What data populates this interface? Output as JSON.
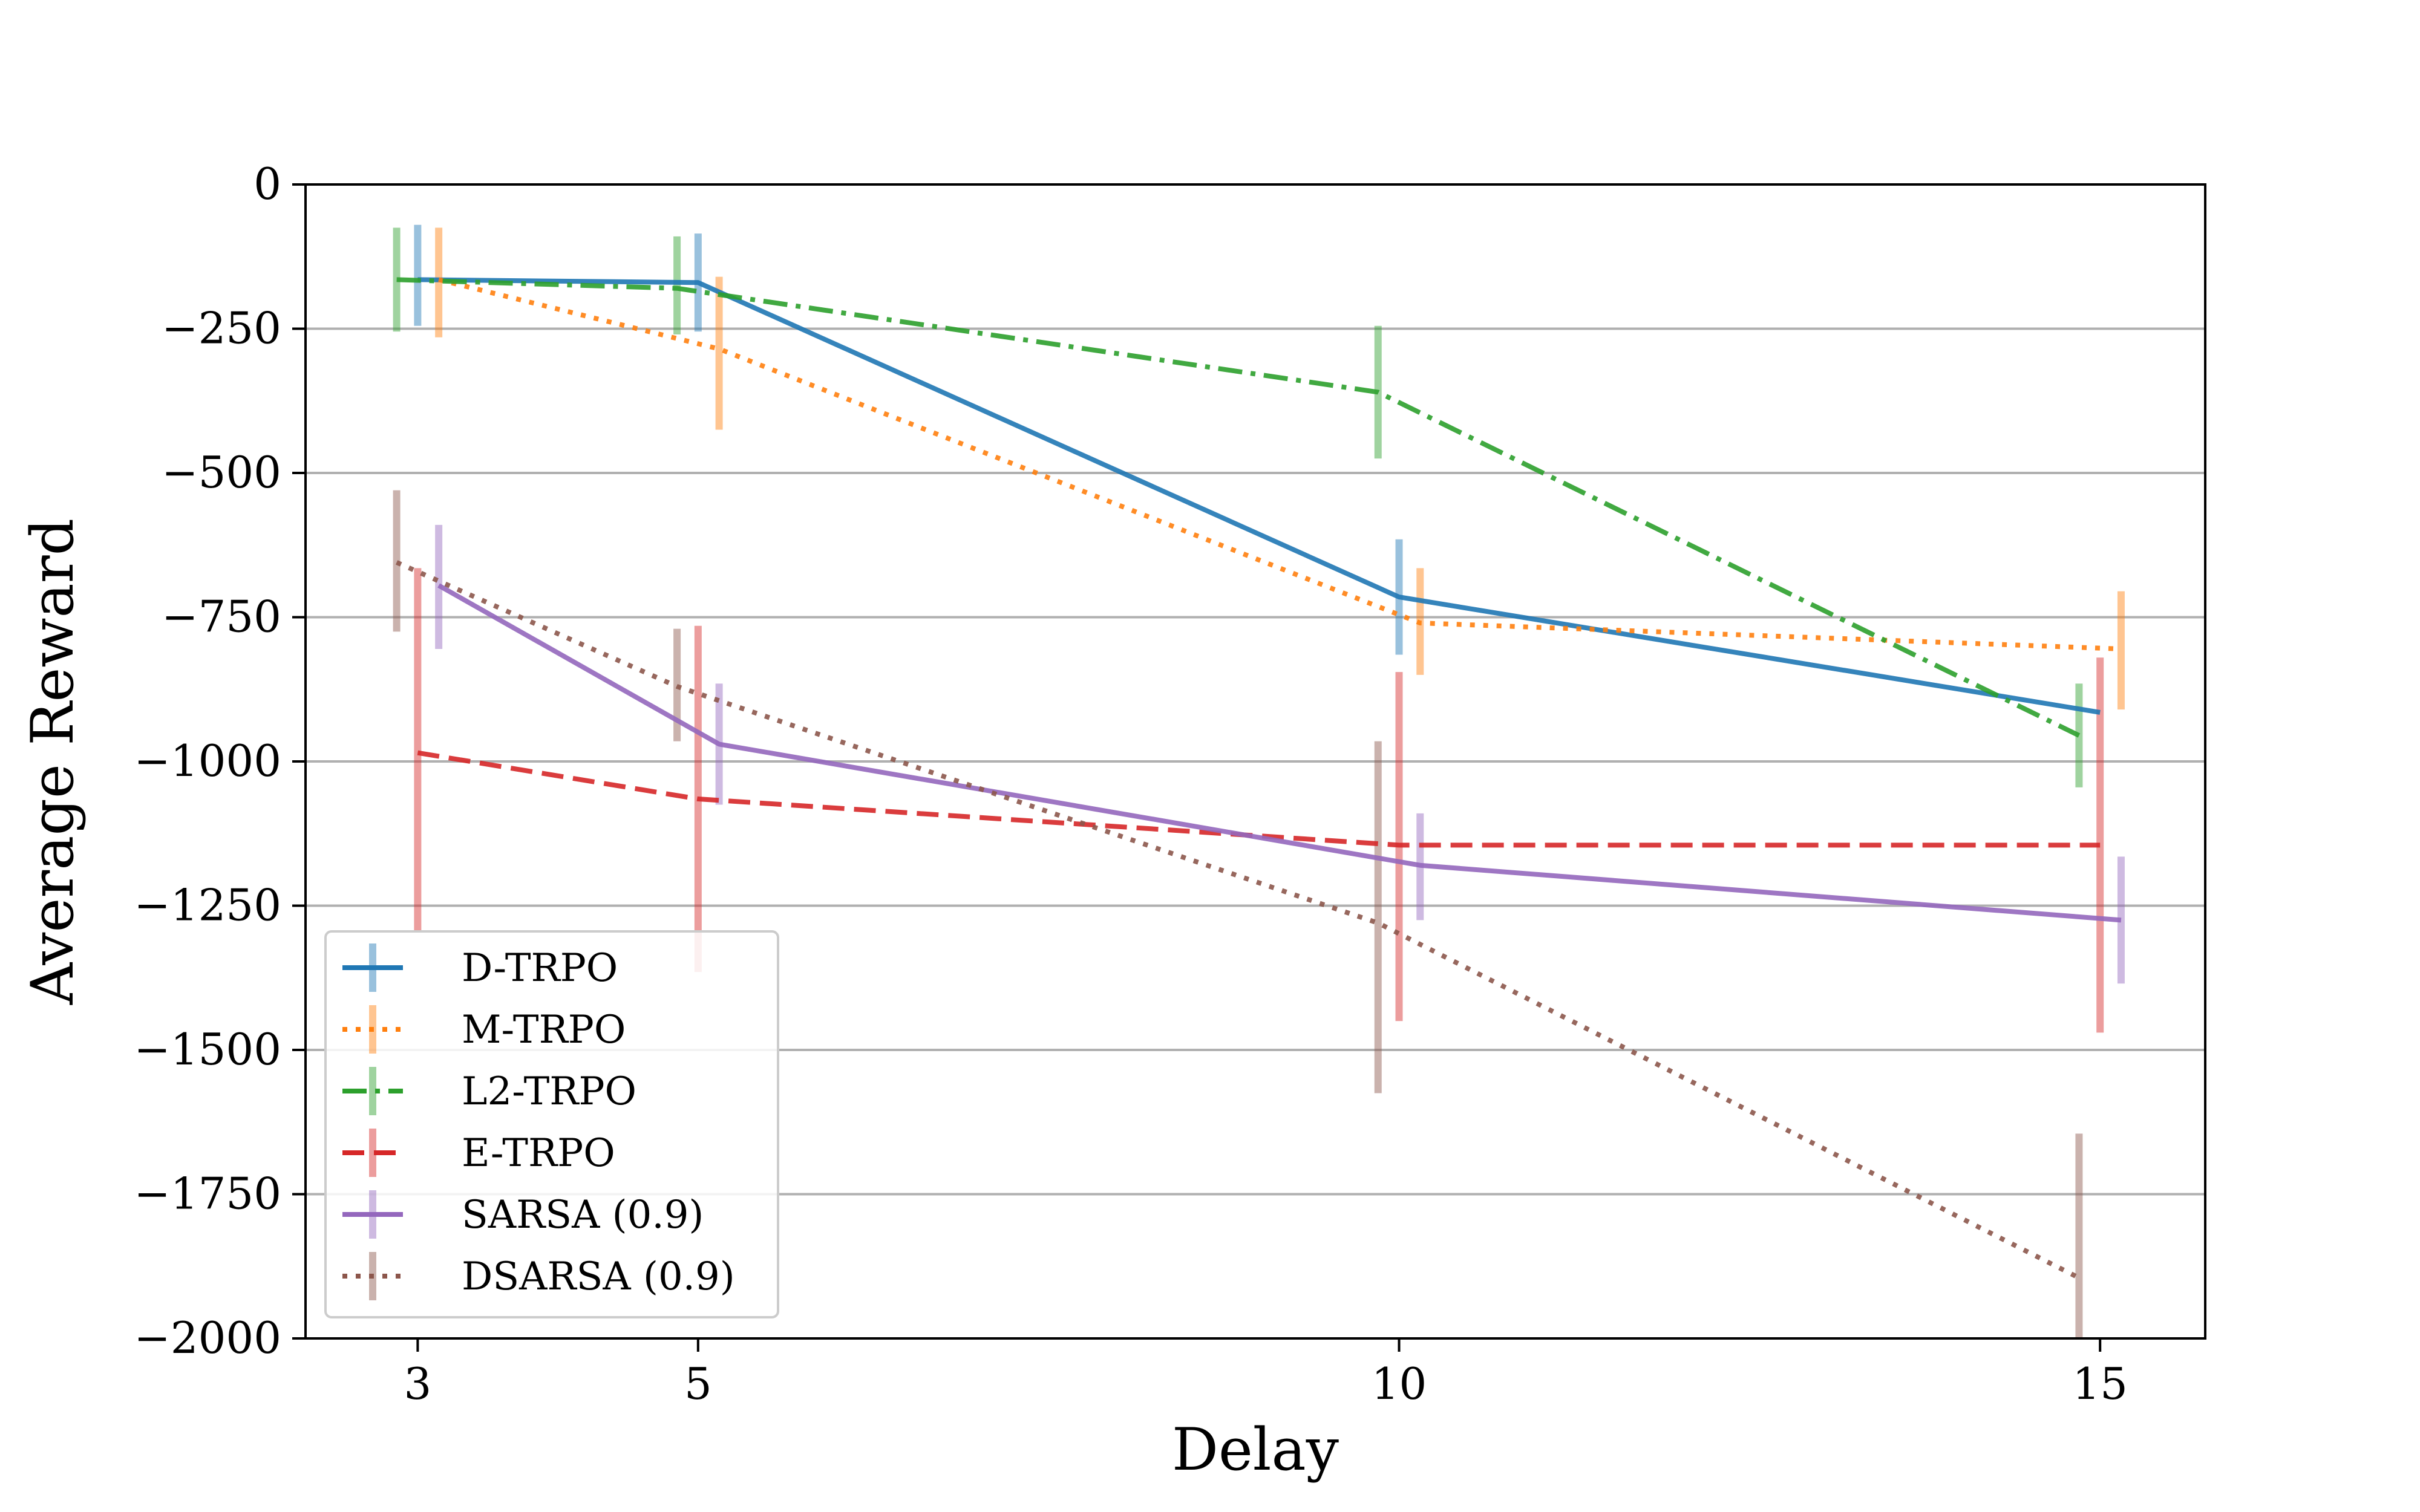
{
  "chart_data": {
    "type": "line",
    "xlabel": "Delay",
    "ylabel": "Average Reward",
    "x_ticks": [
      3,
      5,
      10,
      15
    ],
    "x_tick_labels": [
      "3",
      "5",
      "10",
      "15"
    ],
    "y_ticks": [
      0,
      -250,
      -500,
      -750,
      -1000,
      -1250,
      -1500,
      -1750,
      -2000
    ],
    "y_tick_labels": [
      "0",
      "−250",
      "−500",
      "−750",
      "−1000",
      "−1250",
      "−1500",
      "−1750",
      "−2000"
    ],
    "xlim": [
      2.2,
      15.75
    ],
    "ylim": [
      -2000,
      0
    ],
    "grid": "horizontal",
    "legend_position": "lower-left",
    "series": [
      {
        "name": "D-TRPO",
        "color": "#1f77b4",
        "style": "solid",
        "x": [
          3.0,
          5.0,
          10.0,
          15.0
        ],
        "y": [
          -165,
          -170,
          -715,
          -915
        ],
        "err_low": [
          -245,
          -255,
          -815,
          -915
        ],
        "err_high": [
          -70,
          -85,
          -615,
          -915
        ]
      },
      {
        "name": "M-TRPO",
        "color": "#ff7f0e",
        "style": "dotted",
        "x": [
          3.15,
          5.15,
          10.15,
          15.15
        ],
        "y": [
          -165,
          -285,
          -760,
          -805
        ],
        "err_low": [
          -265,
          -425,
          -850,
          -910
        ],
        "err_high": [
          -75,
          -160,
          -665,
          -705
        ]
      },
      {
        "name": "L2-TRPO",
        "color": "#2ca02c",
        "style": "dashdot",
        "x": [
          2.85,
          4.85,
          9.85,
          14.85
        ],
        "y": [
          -165,
          -180,
          -360,
          -955
        ],
        "err_low": [
          -255,
          -260,
          -475,
          -1045
        ],
        "err_high": [
          -75,
          -90,
          -245,
          -865
        ]
      },
      {
        "name": "E-TRPO",
        "color": "#d62728",
        "style": "dashed",
        "x": [
          3.0,
          5.0,
          10.0,
          15.0
        ],
        "y": [
          -985,
          -1065,
          -1145,
          -1145
        ],
        "err_low": [
          -1295,
          -1365,
          -1450,
          -1470
        ],
        "err_high": [
          -665,
          -765,
          -845,
          -820
        ]
      },
      {
        "name": "SARSA (0.9)",
        "color": "#9467bd",
        "style": "solid",
        "x": [
          3.15,
          5.15,
          10.15,
          15.15
        ],
        "y": [
          -695,
          -970,
          -1180,
          -1275
        ],
        "err_low": [
          -805,
          -1075,
          -1275,
          -1385
        ],
        "err_high": [
          -590,
          -865,
          -1090,
          -1165
        ]
      },
      {
        "name": "DSARSA (0.9)",
        "color": "#8c564b",
        "style": "dotted",
        "x": [
          2.85,
          4.85,
          9.85,
          14.85
        ],
        "y": [
          -655,
          -870,
          -1280,
          -1895
        ],
        "err_low": [
          -775,
          -965,
          -1575,
          -2000
        ],
        "err_high": [
          -530,
          -770,
          -965,
          -1645
        ]
      }
    ]
  }
}
